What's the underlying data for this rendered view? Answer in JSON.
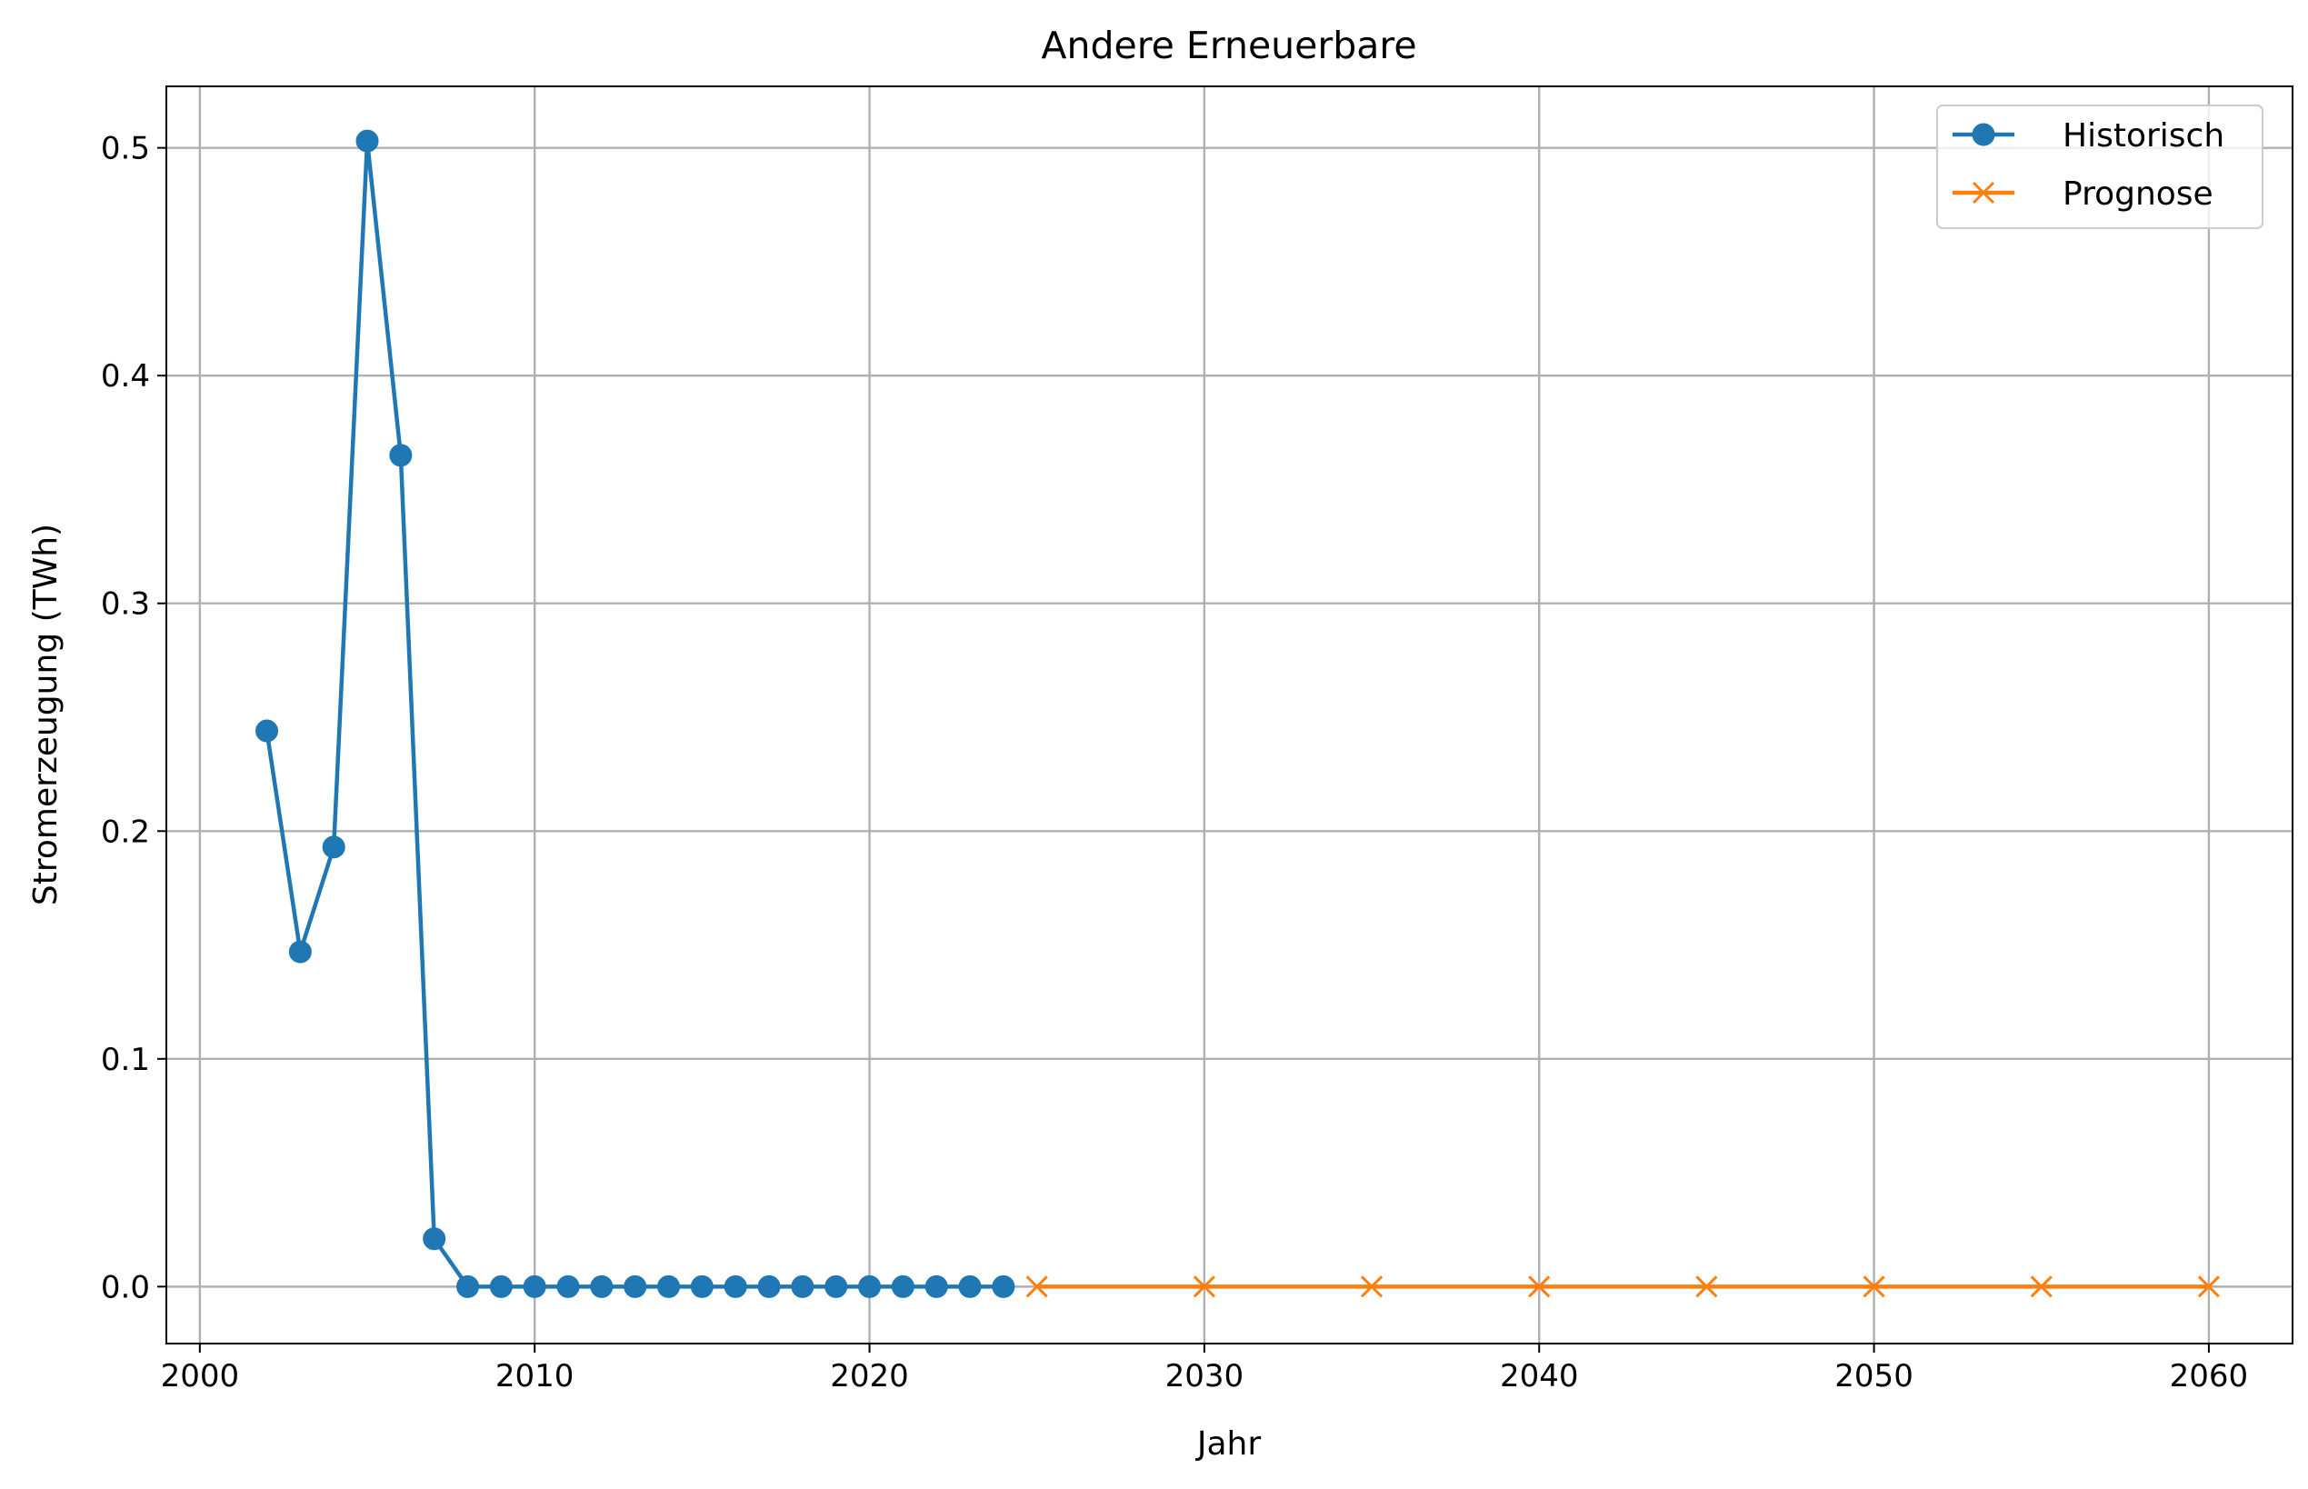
{
  "chart_data": {
    "type": "line",
    "title": "Andere Erneuerbare",
    "xlabel": "Jahr",
    "ylabel": "Stromerzeugung (TWh)",
    "xlim": [
      1999.0,
      2062.5
    ],
    "ylim": [
      -0.025,
      0.527
    ],
    "x_ticks": [
      2000,
      2010,
      2020,
      2030,
      2040,
      2050,
      2060
    ],
    "x_tick_labels": [
      "2000",
      "2010",
      "2020",
      "2030",
      "2040",
      "2050",
      "2060"
    ],
    "y_ticks": [
      0.0,
      0.1,
      0.2,
      0.3,
      0.4,
      0.5
    ],
    "y_tick_labels": [
      "0.0",
      "0.1",
      "0.2",
      "0.3",
      "0.4",
      "0.5"
    ],
    "grid": true,
    "legend_position": "top-right",
    "series": [
      {
        "name": "Historisch",
        "color": "#1f77b4",
        "marker": "circle",
        "x": [
          2002,
          2003,
          2004,
          2005,
          2006,
          2007,
          2008,
          2009,
          2010,
          2011,
          2012,
          2013,
          2014,
          2015,
          2016,
          2017,
          2018,
          2019,
          2020,
          2021,
          2022,
          2023,
          2024
        ],
        "y": [
          0.244,
          0.147,
          0.193,
          0.503,
          0.365,
          0.021,
          0.0,
          0.0,
          0.0,
          0.0,
          0.0,
          0.0,
          0.0,
          0.0,
          0.0,
          0.0,
          0.0,
          0.0,
          0.0,
          0.0,
          0.0,
          0.0,
          0.0
        ]
      },
      {
        "name": "Prognose",
        "color": "#ff7f0e",
        "marker": "x",
        "x": [
          2025,
          2030,
          2035,
          2040,
          2045,
          2050,
          2055,
          2060
        ],
        "y": [
          0.0,
          0.0,
          0.0,
          0.0,
          0.0,
          0.0,
          0.0,
          0.0
        ]
      }
    ]
  }
}
